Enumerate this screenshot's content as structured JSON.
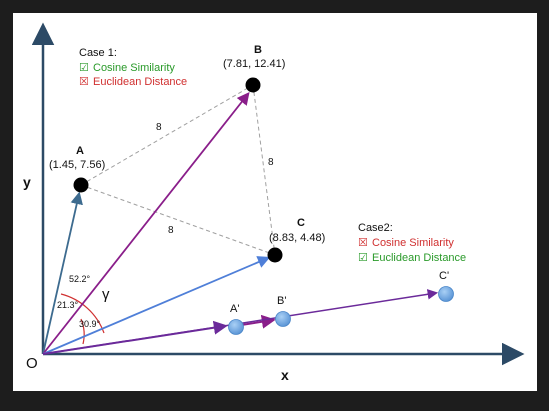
{
  "axes": {
    "x_label": "x",
    "y_label": "y",
    "origin_label": "O"
  },
  "case1": {
    "title": "Case 1:",
    "items": [
      {
        "mark": "☑",
        "text": "Cosine Similarity",
        "color": "#2a9a2a"
      },
      {
        "mark": "☒",
        "text": "Euclidean Distance",
        "color": "#d03030"
      }
    ]
  },
  "case2": {
    "title": "Case2:",
    "items": [
      {
        "mark": "☒",
        "text": "Cosine Similarity",
        "color": "#d03030"
      },
      {
        "mark": "☑",
        "text": "Euclidean Distance",
        "color": "#2a9a2a"
      }
    ]
  },
  "points": {
    "A": {
      "name": "A",
      "coords": "(1.45, 7.56)"
    },
    "B": {
      "name": "B",
      "coords": "(7.81, 12.41)"
    },
    "C": {
      "name": "C",
      "coords": "(8.83, 4.48)"
    },
    "A2": {
      "name": "A'"
    },
    "B2": {
      "name": "B'"
    },
    "C2": {
      "name": "C'"
    }
  },
  "distances": {
    "AB": "8",
    "BC": "8",
    "AC": "8"
  },
  "angles": {
    "gamma": "γ",
    "a1": "52.2°",
    "a2": "21.3°",
    "a3": "30.9°"
  },
  "colors": {
    "axis": "#2c4a66",
    "vecA": "#3d6b8f",
    "vecB": "#8a1e8a",
    "vecC": "#4f7fd8",
    "vecPrime": "#6b2a9a",
    "dash": "#a0a0a0",
    "arc": "#d03030",
    "primePoint": "#6ea8e0"
  }
}
